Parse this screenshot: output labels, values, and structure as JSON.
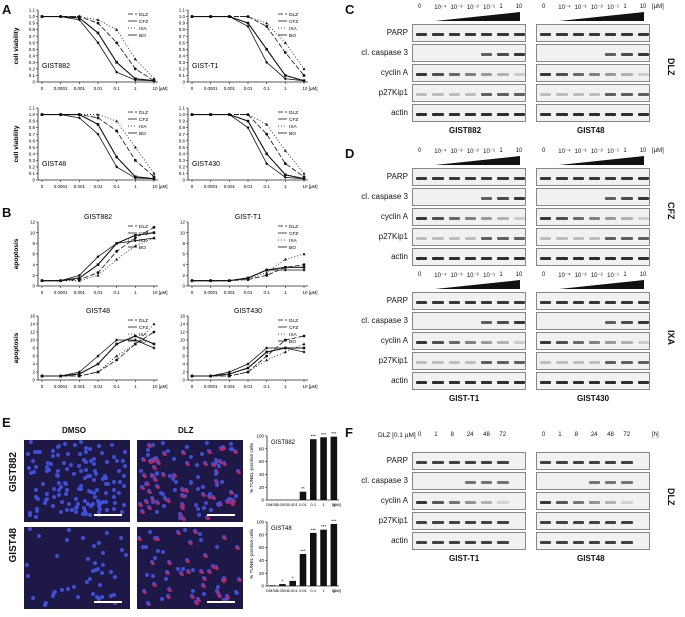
{
  "panels": {
    "A": "A",
    "B": "B",
    "C": "C",
    "D": "D",
    "E": "E",
    "F": "F"
  },
  "legend": [
    "DLZ",
    "CFZ",
    "IXA",
    "BO"
  ],
  "x_ticks": [
    "0",
    "0.0001",
    "0.001",
    "0.01",
    "0.1",
    "1",
    "10 [µM]"
  ],
  "viability_ticks": [
    "0",
    "0.1",
    "0.2",
    "0.3",
    "0.4",
    "0.5",
    "0.6",
    "0.7",
    "0.8",
    "0.9",
    "1.0",
    "1.1"
  ],
  "apoptosis_ticks": [
    "0",
    "2",
    "4",
    "6",
    "8",
    "10",
    "12"
  ],
  "apoptosis_ticks_b": [
    "0",
    "2",
    "4",
    "6",
    "8",
    "10",
    "12",
    "14",
    "16"
  ],
  "chart_data": [
    {
      "type": "line",
      "panel": "A",
      "title": "GIST882",
      "ylabel": "cell viability",
      "ylim": [
        0,
        1.1
      ],
      "x": [
        "0",
        "0.0001",
        "0.001",
        "0.01",
        "0.1",
        "1",
        "10"
      ],
      "series": [
        {
          "name": "DLZ",
          "values": [
            1.0,
            1.0,
            1.0,
            0.9,
            0.6,
            0.2,
            0.02
          ]
        },
        {
          "name": "CFZ",
          "values": [
            1.0,
            1.0,
            0.98,
            0.75,
            0.3,
            0.05,
            0.02
          ]
        },
        {
          "name": "IXA",
          "values": [
            1.0,
            1.0,
            1.0,
            0.95,
            0.8,
            0.35,
            0.05
          ]
        },
        {
          "name": "BO",
          "values": [
            1.0,
            1.0,
            0.95,
            0.6,
            0.15,
            0.03,
            0.02
          ]
        }
      ]
    },
    {
      "type": "line",
      "panel": "A",
      "title": "GIST-T1",
      "ylabel": "",
      "ylim": [
        0,
        1.1
      ],
      "x": [
        "0",
        "0.0001",
        "0.001",
        "0.01",
        "0.1",
        "1",
        "10"
      ],
      "series": [
        {
          "name": "DLZ",
          "values": [
            1.0,
            1.0,
            1.0,
            1.0,
            0.85,
            0.45,
            0.1
          ]
        },
        {
          "name": "CFZ",
          "values": [
            1.0,
            1.0,
            1.0,
            0.9,
            0.5,
            0.1,
            0.02
          ]
        },
        {
          "name": "IXA",
          "values": [
            1.0,
            1.0,
            1.0,
            1.0,
            0.9,
            0.6,
            0.2
          ]
        },
        {
          "name": "BO",
          "values": [
            1.0,
            1.0,
            1.0,
            0.85,
            0.3,
            0.05,
            0.02
          ]
        }
      ]
    },
    {
      "type": "line",
      "panel": "A",
      "title": "GIST48",
      "ylabel": "cell viability",
      "ylim": [
        0,
        1.1
      ],
      "x": [
        "0",
        "0.0001",
        "0.001",
        "0.01",
        "0.1",
        "1",
        "10"
      ],
      "series": [
        {
          "name": "DLZ",
          "values": [
            1.0,
            1.0,
            1.0,
            0.95,
            0.75,
            0.3,
            0.05
          ]
        },
        {
          "name": "CFZ",
          "values": [
            1.0,
            1.0,
            1.0,
            0.85,
            0.35,
            0.05,
            0.02
          ]
        },
        {
          "name": "IXA",
          "values": [
            1.0,
            1.0,
            1.0,
            1.0,
            0.9,
            0.5,
            0.1
          ]
        },
        {
          "name": "BO",
          "values": [
            1.0,
            1.0,
            0.95,
            0.7,
            0.2,
            0.03,
            0.02
          ]
        }
      ]
    },
    {
      "type": "line",
      "panel": "A",
      "title": "GIST430",
      "ylabel": "",
      "ylim": [
        0,
        1.1
      ],
      "x": [
        "0",
        "0.0001",
        "0.001",
        "0.01",
        "0.1",
        "1",
        "10"
      ],
      "series": [
        {
          "name": "DLZ",
          "values": [
            1.0,
            1.0,
            1.0,
            1.0,
            0.7,
            0.25,
            0.05
          ]
        },
        {
          "name": "CFZ",
          "values": [
            1.0,
            1.0,
            1.0,
            0.9,
            0.4,
            0.08,
            0.02
          ]
        },
        {
          "name": "IXA",
          "values": [
            1.0,
            1.0,
            1.0,
            1.0,
            0.85,
            0.45,
            0.1
          ]
        },
        {
          "name": "BO",
          "values": [
            1.0,
            1.0,
            1.0,
            0.8,
            0.25,
            0.04,
            0.02
          ]
        }
      ]
    },
    {
      "type": "line",
      "panel": "B",
      "title": "GIST882",
      "ylabel": "apoptosis",
      "ylim": [
        0,
        12
      ],
      "x": [
        "0",
        "0.0001",
        "0.001",
        "0.01",
        "0.1",
        "1",
        "10"
      ],
      "series": [
        {
          "name": "DLZ",
          "values": [
            1,
            1,
            1.2,
            2.5,
            6.5,
            9,
            11
          ]
        },
        {
          "name": "CFZ",
          "values": [
            1,
            1,
            1.5,
            4,
            8,
            9.5,
            10
          ]
        },
        {
          "name": "IXA",
          "values": [
            1,
            1,
            1,
            2,
            5,
            7.5,
            9
          ]
        },
        {
          "name": "BO",
          "values": [
            1,
            1,
            2,
            5.5,
            8,
            8.5,
            9
          ]
        }
      ]
    },
    {
      "type": "line",
      "panel": "B",
      "title": "GIST-T1",
      "ylabel": "",
      "ylim": [
        0,
        12
      ],
      "x": [
        "0",
        "0.0001",
        "0.001",
        "0.01",
        "0.1",
        "1",
        "10"
      ],
      "series": [
        {
          "name": "DLZ",
          "values": [
            1,
            1,
            1,
            1.2,
            2,
            3.5,
            4
          ]
        },
        {
          "name": "CFZ",
          "values": [
            1,
            1,
            1,
            1.5,
            3,
            3.5,
            3.5
          ]
        },
        {
          "name": "IXA",
          "values": [
            1,
            1,
            1,
            1.3,
            2.5,
            5,
            6
          ]
        },
        {
          "name": "BO",
          "values": [
            1,
            1,
            1,
            1.5,
            3,
            3,
            3
          ]
        }
      ]
    },
    {
      "type": "line",
      "panel": "B",
      "title": "GIST48",
      "ylabel": "apoptosis",
      "ylim": [
        0,
        16
      ],
      "x": [
        "0",
        "0.0001",
        "0.001",
        "0.01",
        "0.1",
        "1",
        "10"
      ],
      "series": [
        {
          "name": "DLZ",
          "values": [
            1,
            1,
            1,
            2,
            5,
            9,
            12
          ]
        },
        {
          "name": "CFZ",
          "values": [
            1,
            1,
            1.5,
            4,
            9,
            11,
            9
          ]
        },
        {
          "name": "IXA",
          "values": [
            1,
            1,
            1,
            2,
            6,
            9,
            14
          ]
        },
        {
          "name": "BO",
          "values": [
            1,
            1,
            2,
            6,
            10,
            10,
            8
          ]
        }
      ]
    },
    {
      "type": "line",
      "panel": "B",
      "title": "GIST430",
      "ylabel": "",
      "ylim": [
        0,
        16
      ],
      "x": [
        "0",
        "0.0001",
        "0.001",
        "0.01",
        "0.1",
        "1",
        "10"
      ],
      "series": [
        {
          "name": "DLZ",
          "values": [
            1,
            1,
            1,
            2,
            6,
            10,
            11
          ]
        },
        {
          "name": "CFZ",
          "values": [
            1,
            1,
            1.5,
            3,
            7,
            8,
            8
          ]
        },
        {
          "name": "IXA",
          "values": [
            1,
            1,
            1,
            2,
            5,
            7,
            9
          ]
        },
        {
          "name": "BO",
          "values": [
            1,
            1,
            2,
            4,
            8,
            8,
            7
          ]
        }
      ]
    },
    {
      "type": "bar",
      "panel": "E",
      "title": "GIST882",
      "ylabel": "% TUNEL-positive cells",
      "ylim": [
        0,
        100
      ],
      "categories": [
        "DMSO",
        "0.0001",
        "0.001",
        "0.01",
        "0.1",
        "1",
        "10"
      ],
      "values": [
        0,
        0,
        0,
        13,
        95,
        98,
        99
      ],
      "annotations": [
        "",
        "",
        "",
        "**",
        "***",
        "***",
        "***"
      ]
    },
    {
      "type": "bar",
      "panel": "E",
      "title": "GIST48",
      "ylabel": "% TUNEL-positive cells",
      "ylim": [
        0,
        100
      ],
      "categories": [
        "DMSO",
        "0.0001",
        "0.001",
        "0.01",
        "0.1",
        "1",
        "10"
      ],
      "values": [
        1,
        3,
        8,
        50,
        83,
        88,
        97
      ],
      "annotations": [
        "",
        "*",
        "*",
        "***",
        "***",
        "***",
        "***"
      ]
    }
  ],
  "bar_yticks": [
    "0",
    "20",
    "40",
    "60",
    "80",
    "100"
  ],
  "bar_unit": "[µM]",
  "conc_labels": [
    "0",
    "10⁻⁴",
    "10⁻³",
    "10⁻²",
    "10⁻¹",
    "1",
    "10"
  ],
  "conc_unit": "[µM]",
  "blot_C": {
    "rows": [
      "PARP",
      "cl. caspase 3",
      "cyclin A",
      "p27Kip1",
      "actin"
    ],
    "left": "GIST882",
    "right": "GIST48",
    "drug": "DLZ"
  },
  "blot_D": {
    "rows": [
      "PARP",
      "cl. caspase 3",
      "cyclin A",
      "p27Kip1",
      "actin"
    ],
    "left": "GIST-T1",
    "right": "GIST430",
    "drug_top": "CFZ",
    "drug_bottom": "IXA"
  },
  "blot_F": {
    "dose": "DLZ [0.1 µM]",
    "times": [
      "0",
      "1",
      "8",
      "24",
      "48",
      "72"
    ],
    "unit": "[h]",
    "rows": [
      "PARP",
      "cl. caspase 3",
      "cyclin A",
      "p27Kip1",
      "actin"
    ],
    "left": "GIST-T1",
    "right": "GIST48",
    "drug": "DLZ"
  },
  "micro": {
    "col1": "DMSO",
    "col2": "DLZ",
    "row1": "GIST882",
    "row2": "GIST48"
  }
}
